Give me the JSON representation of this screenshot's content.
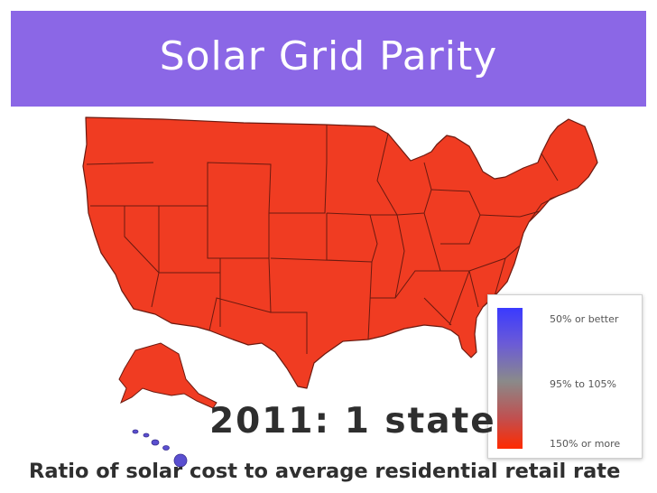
{
  "title": "Solar Grid Parity",
  "year_label": "2011: 1 state",
  "caption": "Ratio of solar cost to average residential retail rate",
  "legend": {
    "items": [
      {
        "label": "50% or better",
        "color": "#3a3aff"
      },
      {
        "label": "95% to 105%",
        "color": "#8a8a8a"
      },
      {
        "label": "150% or more",
        "color": "#ff2a00"
      }
    ]
  },
  "colors": {
    "banner": "#8b67e6",
    "state_fill": "#f03c22",
    "state_border": "#6b1a10",
    "hawaii": "#5a4fd0"
  }
}
